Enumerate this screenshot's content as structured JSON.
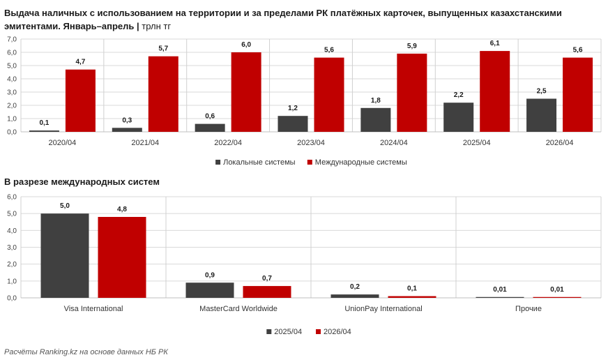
{
  "header": {
    "title": "Выдача наличных с использованием на территории и за пределами РК платёжных карточек, выпущенных казахстанскими эмитентами. Январь–апрель",
    "unit": "трлн тг"
  },
  "section2_title": "В разрезе международных систем",
  "footer": "Расчёты Ranking.kz на основе данных НБ РК",
  "colors": {
    "local": "#404040",
    "international": "#c00000",
    "grid": "#d9d9d9",
    "separator": "#d0d0d0"
  },
  "chart_data": [
    {
      "type": "bar",
      "categories": [
        "2020/04",
        "2021/04",
        "2022/04",
        "2023/04",
        "2024/04",
        "2025/04",
        "2026/04"
      ],
      "series": [
        {
          "name": "Локальные системы",
          "values": [
            0.1,
            0.3,
            0.6,
            1.2,
            1.8,
            2.2,
            2.5
          ],
          "labels": [
            "0,1",
            "0,3",
            "0,6",
            "1,2",
            "1,8",
            "2,2",
            "2,5"
          ]
        },
        {
          "name": "Международные системы",
          "values": [
            4.7,
            5.7,
            6.0,
            5.6,
            5.9,
            6.1,
            5.6
          ],
          "labels": [
            "4,7",
            "5,7",
            "6,0",
            "5,6",
            "5,9",
            "6,1",
            "5,6"
          ]
        }
      ],
      "ylim": [
        0,
        7
      ],
      "yticks": [
        "0,0",
        "1,0",
        "2,0",
        "3,0",
        "4,0",
        "5,0",
        "6,0",
        "7,0"
      ],
      "grid": true,
      "legend": "bottom"
    },
    {
      "type": "bar",
      "categories": [
        "Visa International",
        "MasterCard Worldwide",
        "UnionPay International",
        "Прочие"
      ],
      "series": [
        {
          "name": "2025/04",
          "values": [
            5.0,
            0.9,
            0.2,
            0.01
          ],
          "labels": [
            "5,0",
            "0,9",
            "0,2",
            "0,01"
          ]
        },
        {
          "name": "2026/04",
          "values": [
            4.8,
            0.7,
            0.1,
            0.01
          ],
          "labels": [
            "4,8",
            "0,7",
            "0,1",
            "0,01"
          ]
        }
      ],
      "ylim": [
        0,
        6
      ],
      "yticks": [
        "0,0",
        "1,0",
        "2,0",
        "3,0",
        "4,0",
        "5,0",
        "6,0"
      ],
      "grid": true,
      "legend": "bottom"
    }
  ]
}
